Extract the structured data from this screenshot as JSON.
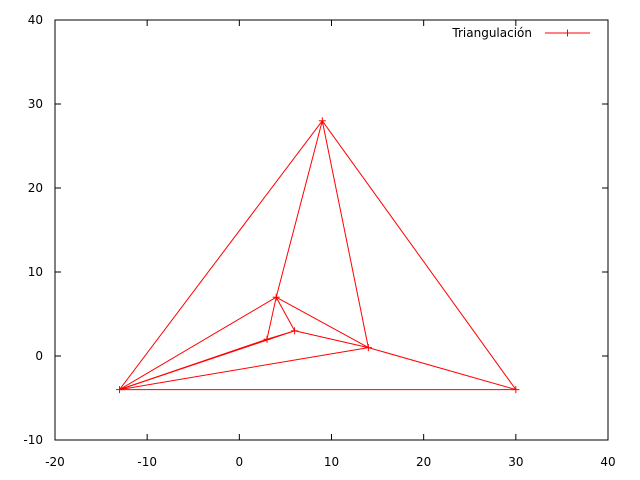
{
  "chart_data": {
    "type": "line",
    "title": "",
    "xlabel": "",
    "ylabel": "",
    "xlim": [
      -20,
      40
    ],
    "ylim": [
      -10,
      40
    ],
    "x_ticks": [
      -20,
      -10,
      0,
      10,
      20,
      30,
      40
    ],
    "y_ticks": [
      -10,
      0,
      10,
      20,
      30,
      40
    ],
    "x_tick_labels": [
      "-20",
      "-10",
      "0",
      "10",
      "20",
      "30",
      "40"
    ],
    "y_tick_labels": [
      "-10",
      "0",
      "10",
      "20",
      "30",
      "40"
    ],
    "grid": false,
    "legend_position": "top-right",
    "series": [
      {
        "name": "Triangulación",
        "color": "#ff0000",
        "marker": "plus",
        "segments": [
          [
            [
              -13,
              -4
            ],
            [
              30,
              -4
            ]
          ],
          [
            [
              30,
              -4
            ],
            [
              9,
              28
            ]
          ],
          [
            [
              9,
              28
            ],
            [
              -13,
              -4
            ]
          ],
          [
            [
              -13,
              -4
            ],
            [
              4,
              7
            ]
          ],
          [
            [
              -13,
              -4
            ],
            [
              3,
              2
            ]
          ],
          [
            [
              -13,
              -4
            ],
            [
              6,
              3
            ]
          ],
          [
            [
              -13,
              -4
            ],
            [
              14,
              1
            ]
          ],
          [
            [
              4,
              7
            ],
            [
              9,
              28
            ]
          ],
          [
            [
              4,
              7
            ],
            [
              14,
              1
            ]
          ],
          [
            [
              4,
              7
            ],
            [
              3,
              2
            ]
          ],
          [
            [
              4,
              7
            ],
            [
              6,
              3
            ]
          ],
          [
            [
              3,
              2
            ],
            [
              6,
              3
            ]
          ],
          [
            [
              6,
              3
            ],
            [
              14,
              1
            ]
          ],
          [
            [
              9,
              28
            ],
            [
              14,
              1
            ]
          ],
          [
            [
              14,
              1
            ],
            [
              30,
              -4
            ]
          ]
        ],
        "points": [
          [
            -13,
            -4
          ],
          [
            30,
            -4
          ],
          [
            9,
            28
          ],
          [
            4,
            7
          ],
          [
            3,
            2
          ],
          [
            6,
            3
          ],
          [
            14,
            1
          ]
        ]
      }
    ]
  }
}
